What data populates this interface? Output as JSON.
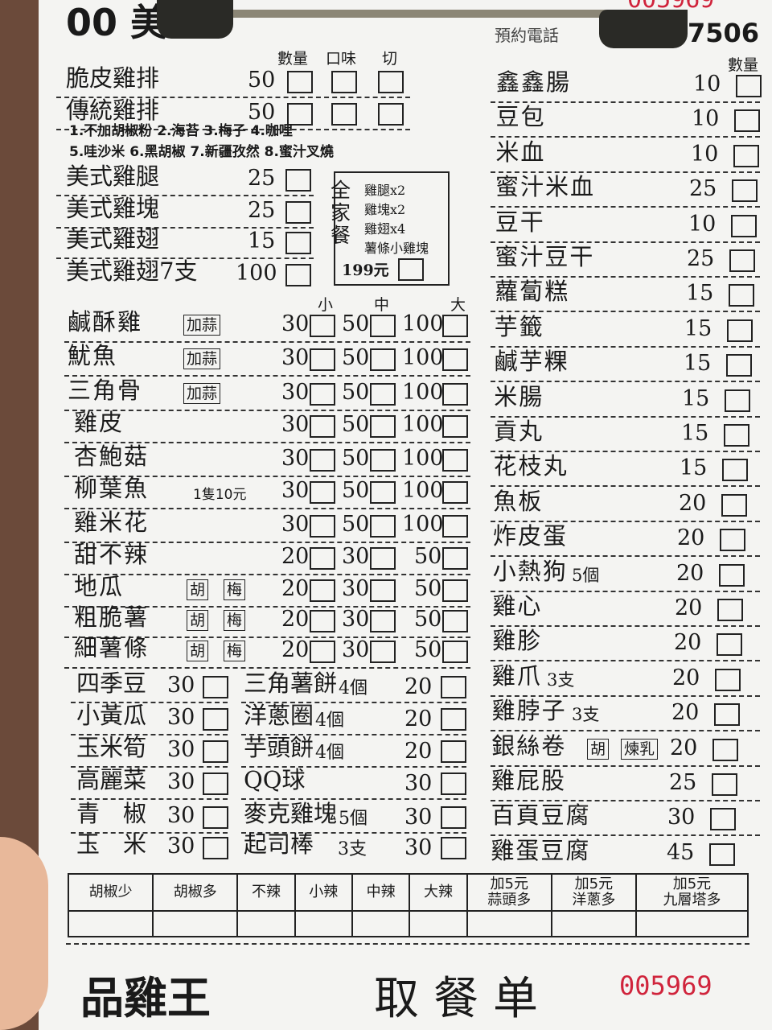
{
  "header": {
    "brand_fragment": "00 美",
    "phone_label": "預約電話",
    "phone_fragment": "7506",
    "serial_fragment": "005969"
  },
  "top_section": {
    "columns": [
      "數量",
      "口味",
      "切"
    ],
    "items": [
      {
        "name": "脆皮雞排",
        "price": "50"
      },
      {
        "name": "傳統雞排",
        "price": "50"
      }
    ],
    "flavor_notes": [
      "1.不加胡椒粉 2.海苔 3.梅子 4.咖哩",
      "5.哇沙米 6.黑胡椒 7.新疆孜然 8.蜜汁叉燒"
    ],
    "american": [
      {
        "name": "美式雞腿",
        "price": "25"
      },
      {
        "name": "美式雞塊",
        "price": "25"
      },
      {
        "name": "美式雞翅",
        "price": "15"
      },
      {
        "name": "美式雞翅7支",
        "price": "100"
      }
    ],
    "combo": {
      "title": "全家餐",
      "lines": [
        "雞腿x2",
        "雞塊x2",
        "雞翅x4",
        "薯條小雞塊"
      ],
      "price": "199元"
    }
  },
  "fried_section": {
    "sizes": [
      "小",
      "中",
      "大"
    ],
    "items": [
      {
        "name": "鹹酥雞",
        "tags": [
          "加蒜"
        ],
        "prices": [
          "30",
          "50",
          "100"
        ]
      },
      {
        "name": "魷魚",
        "tags": [
          "加蒜"
        ],
        "prices": [
          "30",
          "50",
          "100"
        ]
      },
      {
        "name": "三角骨",
        "tags": [
          "加蒜"
        ],
        "prices": [
          "30",
          "50",
          "100"
        ]
      },
      {
        "name": "雞皮",
        "tags": [],
        "prices": [
          "30",
          "50",
          "100"
        ]
      },
      {
        "name": "杏鮑菇",
        "tags": [],
        "prices": [
          "30",
          "50",
          "100"
        ]
      },
      {
        "name": "柳葉魚",
        "note": "1隻10元",
        "tags": [],
        "prices": [
          "30",
          "50",
          "100"
        ]
      },
      {
        "name": "雞米花",
        "tags": [],
        "prices": [
          "30",
          "50",
          "100"
        ]
      },
      {
        "name": "甜不辣",
        "tags": [],
        "prices": [
          "20",
          "30",
          "50"
        ]
      },
      {
        "name": "地瓜",
        "tags": [
          "胡",
          "梅"
        ],
        "prices": [
          "20",
          "30",
          "50"
        ]
      },
      {
        "name": "粗脆薯",
        "tags": [
          "胡",
          "梅"
        ],
        "prices": [
          "20",
          "30",
          "50"
        ]
      },
      {
        "name": "細薯條",
        "tags": [
          "胡",
          "梅"
        ],
        "prices": [
          "20",
          "30",
          "50"
        ]
      }
    ]
  },
  "veg_section": {
    "left": [
      {
        "name": "四季豆",
        "price": "30"
      },
      {
        "name": "小黃瓜",
        "price": "30"
      },
      {
        "name": "玉米筍",
        "price": "30"
      },
      {
        "name": "高麗菜",
        "price": "30"
      },
      {
        "name": "青　椒",
        "price": "30"
      },
      {
        "name": "玉　米",
        "price": "30"
      }
    ],
    "right": [
      {
        "name": "三角薯餅",
        "note": "4個",
        "price": "20"
      },
      {
        "name": "洋蔥圈",
        "note": "4個",
        "price": "20"
      },
      {
        "name": "芋頭餅",
        "note": "4個",
        "price": "20"
      },
      {
        "name": "QQ球",
        "note": "",
        "price": "30"
      },
      {
        "name": "麥克雞塊",
        "note": "5個",
        "price": "30"
      },
      {
        "name": "起司棒",
        "note": "3支",
        "price": "30"
      }
    ]
  },
  "right_column": {
    "qty_label": "數量",
    "items": [
      {
        "name": "鑫鑫腸",
        "price": "10"
      },
      {
        "name": "豆包",
        "price": "10"
      },
      {
        "name": "米血",
        "price": "10"
      },
      {
        "name": "蜜汁米血",
        "price": "25"
      },
      {
        "name": "豆干",
        "price": "10"
      },
      {
        "name": "蜜汁豆干",
        "price": "25"
      },
      {
        "name": "蘿蔔糕",
        "price": "15"
      },
      {
        "name": "芋籤",
        "price": "15"
      },
      {
        "name": "鹹芋粿",
        "price": "15"
      },
      {
        "name": "米腸",
        "price": "15"
      },
      {
        "name": "貢丸",
        "price": "15"
      },
      {
        "name": "花枝丸",
        "price": "15"
      },
      {
        "name": "魚板",
        "price": "20"
      },
      {
        "name": "炸皮蛋",
        "price": "20"
      },
      {
        "name": "小熱狗",
        "note": "5個",
        "price": "20"
      },
      {
        "name": "雞心",
        "price": "20"
      },
      {
        "name": "雞胗",
        "price": "20"
      },
      {
        "name": "雞爪",
        "note": "3支",
        "price": "20"
      },
      {
        "name": "雞脖子",
        "note": "3支",
        "price": "20"
      },
      {
        "name": "銀絲卷",
        "tags": [
          "胡",
          "煉乳"
        ],
        "price": "20"
      },
      {
        "name": "雞屁股",
        "price": "25"
      },
      {
        "name": "百頁豆腐",
        "price": "30"
      },
      {
        "name": "雞蛋豆腐",
        "price": "45"
      }
    ]
  },
  "options_table": {
    "headers": [
      "胡椒少",
      "胡椒多",
      "不辣",
      "小辣",
      "中辣",
      "大辣",
      "加5元\n蒜頭多",
      "加5元\n洋蔥多",
      "加5元\n九層塔多"
    ]
  },
  "footer": {
    "brand": "品雞王",
    "title": "取餐单",
    "serial": "005969"
  },
  "colors": {
    "paper": "#f4f4f2",
    "ink": "#1a1a1a",
    "serial_red": "#d0243c"
  }
}
